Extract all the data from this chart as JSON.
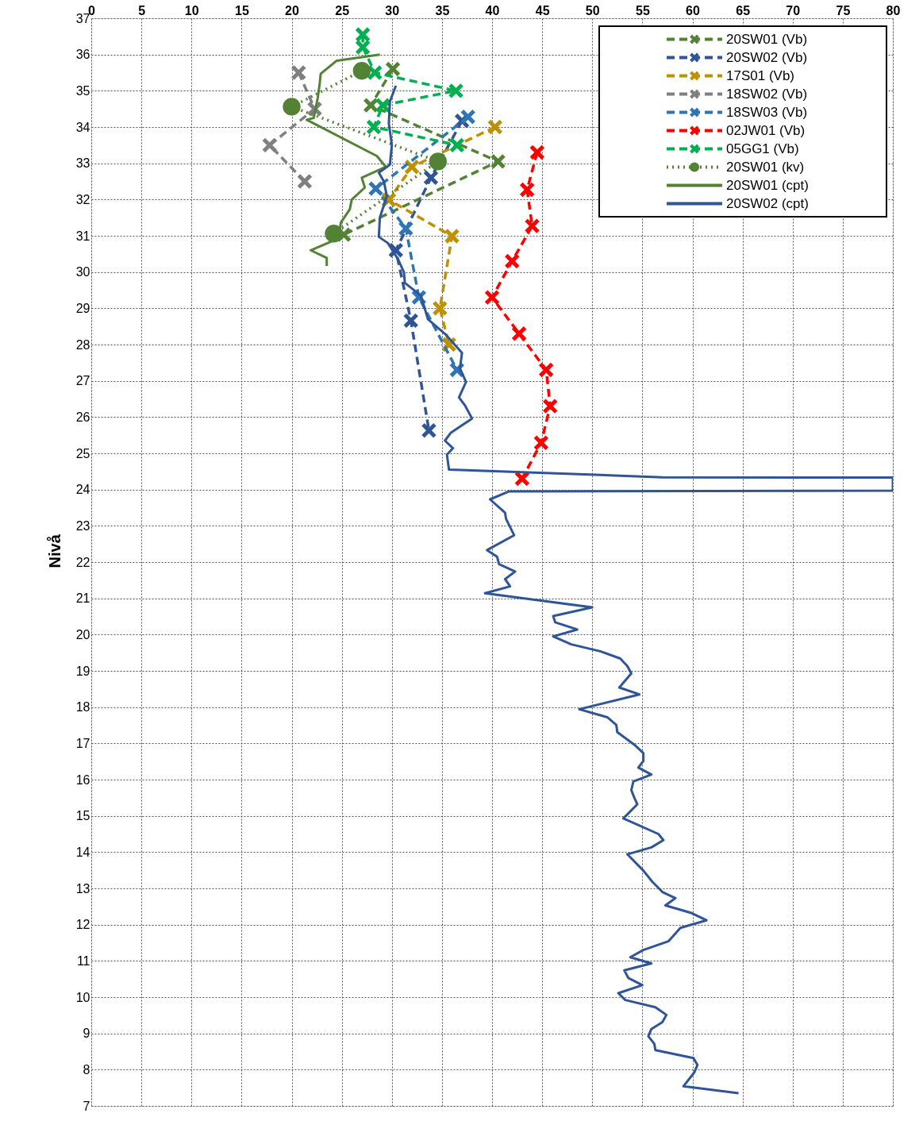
{
  "chart_data": {
    "type": "line",
    "ylabel": "Nivå",
    "xlim": [
      0,
      80
    ],
    "xticks": [
      0,
      5,
      10,
      15,
      20,
      25,
      30,
      35,
      40,
      45,
      50,
      55,
      60,
      65,
      70,
      75,
      80
    ],
    "ylim": [
      7,
      37
    ],
    "yticks": [
      7,
      8,
      9,
      10,
      11,
      12,
      13,
      14,
      15,
      16,
      17,
      18,
      19,
      20,
      21,
      22,
      23,
      24,
      25,
      26,
      27,
      28,
      29,
      30,
      31,
      32,
      33,
      34,
      35,
      36,
      37
    ],
    "grid": true,
    "legend": "top right",
    "series": [
      {
        "name": "20SW01 (Vb)",
        "color": "#548235",
        "marker": "cross",
        "line_style": "dashed",
        "x": [
          30.1,
          27.9,
          40.6,
          25.2
        ],
        "values": [
          35.6,
          34.6,
          33.05,
          31.03
        ]
      },
      {
        "name": "20SW02 (Vb)",
        "color": "#2f5597",
        "marker": "cross",
        "line_style": "dashed",
        "x": [
          37.0,
          33.9,
          30.4,
          31.9,
          33.7
        ],
        "values": [
          34.17,
          32.6,
          30.6,
          28.66,
          25.63
        ]
      },
      {
        "name": "17S01 (Vb)",
        "color": "#bf9000",
        "marker": "cross",
        "line_style": "dashed",
        "x": [
          40.3,
          32.0,
          29.7,
          36.0,
          34.8,
          35.7
        ],
        "values": [
          34.0,
          32.9,
          31.99,
          30.99,
          29.0,
          28.0
        ]
      },
      {
        "name": "18SW02 (Vb)",
        "color": "#7f7f7f",
        "marker": "cross",
        "line_style": "dashed",
        "x": [
          20.7,
          22.3,
          17.8,
          21.3
        ],
        "values": [
          35.5,
          34.5,
          33.5,
          32.5
        ]
      },
      {
        "name": "18SW03 (Vb)",
        "color": "#2e75b6",
        "marker": "cross",
        "line_style": "dashed",
        "x": [
          37.6,
          28.4,
          31.4,
          32.7,
          36.5
        ],
        "values": [
          34.28,
          32.3,
          31.2,
          29.3,
          27.3
        ]
      },
      {
        "name": "02JW01 (Vb)",
        "color": "#ff0000",
        "marker": "cross",
        "line_style": "dashed",
        "x": [
          44.5,
          43.5,
          44.0,
          42.0,
          40.0,
          42.7,
          45.4,
          45.8,
          44.9,
          43.0
        ],
        "values": [
          33.3,
          32.27,
          31.27,
          30.3,
          29.3,
          28.3,
          27.3,
          26.3,
          25.29,
          24.3
        ]
      },
      {
        "name": "05GG1 (Vb)",
        "color": "#00b050",
        "marker": "cross",
        "line_style": "dashed",
        "x": [
          27.1,
          27.1,
          28.3,
          36.4,
          29.1,
          28.2,
          36.5
        ],
        "values": [
          36.55,
          36.2,
          35.5,
          35.0,
          34.6,
          34.0,
          33.5
        ]
      },
      {
        "name": "20SW01 (kv)",
        "color": "#548235",
        "marker": "circle",
        "line_style": "dotted",
        "x": [
          27.0,
          20.0,
          34.6,
          24.2
        ],
        "values": [
          35.55,
          34.56,
          33.05,
          31.06
        ]
      },
      {
        "name": "20SW01 (cpt)",
        "color": "#548235",
        "marker": "none",
        "line_style": "solid",
        "x": [
          28.8,
          24.5,
          22.9,
          22.8,
          22.6,
          22.2,
          21.5,
          28.5,
          29.4,
          27.0,
          27.3,
          26.0,
          25.8,
          24.9,
          24.7,
          21.9,
          23.5,
          23.5
        ],
        "values": [
          36.0,
          35.83,
          35.47,
          35.2,
          34.8,
          34.25,
          34.2,
          33.2,
          32.9,
          32.6,
          32.33,
          32.0,
          31.73,
          31.36,
          30.93,
          30.6,
          30.39,
          30.17
        ]
      },
      {
        "name": "20SW02 (cpt)",
        "color": "#2f5597",
        "marker": "none",
        "line_style": "solid",
        "x": [
          30.4,
          29.8,
          29.7,
          30.0,
          29.8,
          28.7,
          29.2,
          29.5,
          28.8,
          28.7,
          29.6,
          30.6,
          31.2,
          31.3,
          32.9,
          33.2,
          33.6,
          35.4,
          37.0,
          36.8,
          37.4,
          36.7,
          37.3,
          38.0,
          35.9,
          35.3,
          36.1,
          35.5,
          35.7,
          57.0,
          80.0,
          80.0,
          41.7,
          39.8,
          41.3,
          41.4,
          42.2,
          39.5,
          40.5,
          40.7,
          42.3,
          41.3,
          41.8,
          39.3,
          50.0,
          46.1,
          46.3,
          48.5,
          46.1,
          47.9,
          50.8,
          52.8,
          53.5,
          53.9,
          52.7,
          54.7,
          48.7,
          51.5,
          52.4,
          52.5,
          54.3,
          55.1,
          55.1,
          54.6,
          55.9,
          54.1,
          53.9,
          54.2,
          54.5,
          53.1,
          56.6,
          57.1,
          55.9,
          53.5,
          55.1,
          56.0,
          57.0,
          58.3,
          57.3,
          59.9,
          61.4,
          58.8,
          57.6,
          55.1,
          53.8,
          55.9,
          53.2,
          53.6,
          55.0,
          52.6,
          53.3,
          56.3,
          57.4,
          57.0,
          55.9,
          55.6,
          56.2,
          56.3,
          60.1,
          60.5,
          60.2,
          59.1,
          64.6
        ],
        "values": [
          35.14,
          34.7,
          34.1,
          33.5,
          32.96,
          32.74,
          32.5,
          32.1,
          31.5,
          30.97,
          30.8,
          30.36,
          30.0,
          29.7,
          29.35,
          29.07,
          28.7,
          28.27,
          27.77,
          27.34,
          26.97,
          26.54,
          26.32,
          25.96,
          25.57,
          25.35,
          25.14,
          24.96,
          24.55,
          24.34,
          24.33,
          23.97,
          23.95,
          23.73,
          23.36,
          23.19,
          22.74,
          22.33,
          22.15,
          21.94,
          21.74,
          21.53,
          21.33,
          21.14,
          20.75,
          20.51,
          20.34,
          20.14,
          19.95,
          19.73,
          19.54,
          19.34,
          19.13,
          18.93,
          18.54,
          18.35,
          17.94,
          17.72,
          17.51,
          17.31,
          16.94,
          16.73,
          16.51,
          16.33,
          16.14,
          15.95,
          15.71,
          15.5,
          15.32,
          14.93,
          14.5,
          14.33,
          14.13,
          13.94,
          13.49,
          13.18,
          12.9,
          12.73,
          12.53,
          12.32,
          12.12,
          11.91,
          11.54,
          11.3,
          11.1,
          10.93,
          10.74,
          10.53,
          10.33,
          10.11,
          9.92,
          9.72,
          9.51,
          9.31,
          9.12,
          8.92,
          8.71,
          8.54,
          8.32,
          8.13,
          7.93,
          7.54,
          7.35
        ]
      }
    ]
  }
}
